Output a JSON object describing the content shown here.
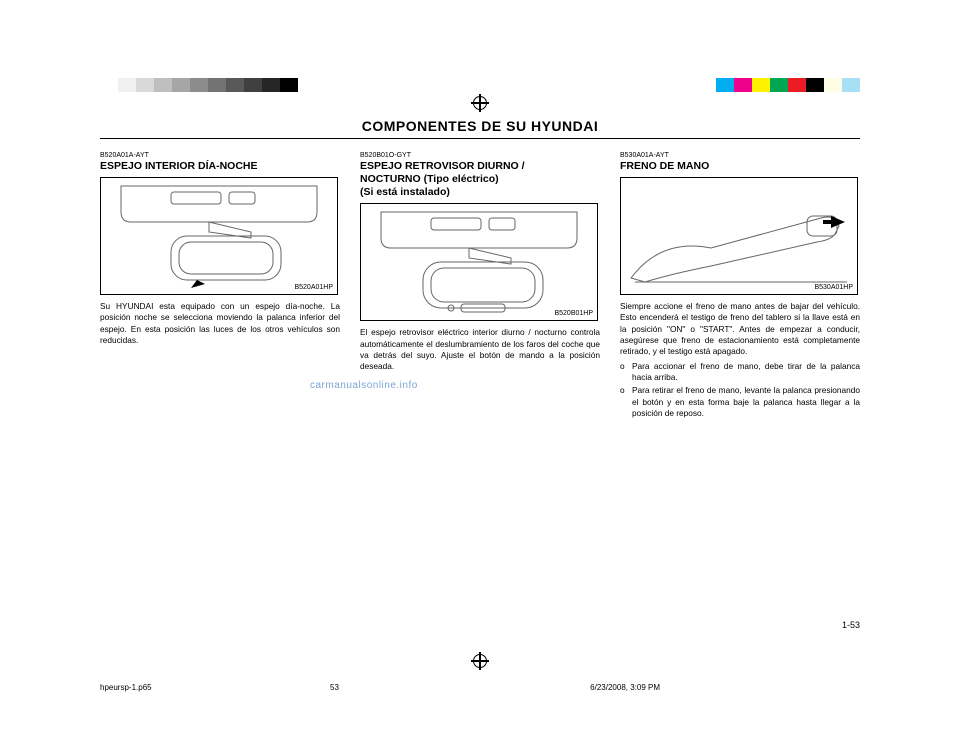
{
  "registration": {
    "gray_swatches": [
      "#ffffff",
      "#f0f0f0",
      "#d9d9d9",
      "#bfbfbf",
      "#a6a6a6",
      "#8c8c8c",
      "#737373",
      "#595959",
      "#404040",
      "#262626",
      "#000000"
    ],
    "color_swatches": [
      "#00aeef",
      "#ec008c",
      "#fff200",
      "#00a651",
      "#ed1c24",
      "#000000",
      "#fffde6",
      "#a7e0f5"
    ]
  },
  "header": {
    "title": "COMPONENTES DE SU HYUNDAI"
  },
  "col1": {
    "code": "B520A01A-AYT",
    "title": "ESPEJO INTERIOR DÍA-NOCHE",
    "fig_label": "B520A01HP",
    "text": "Su HYUNDAI esta equipado con un espejo día-noche. La posición noche se selecciona moviendo la palanca inferior del espejo. En esta posición las luces de los otros vehículos son reducidas."
  },
  "col2": {
    "code": "B520B01O-GYT",
    "title_l1": "ESPEJO RETROVISOR DIURNO /",
    "title_l2": "NOCTURNO (Tipo eléctrico)",
    "title_l3": "(Si está instalado)",
    "fig_label": "B520B01HP",
    "text": "El espejo retrovisor eléctrico interior diurno / nocturno controla automáticamente el deslumbramiento de los faros del coche que va detrás del suyo. Ajuste el botón de mando a la posición deseada."
  },
  "col3": {
    "code": "B530A01A-AYT",
    "title": "FRENO DE MANO",
    "fig_label": "B530A01HP",
    "text": "Siempre accione el freno de mano antes de bajar del vehículo. Esto encenderá el testigo de freno del tablero si la llave está en la posición \"ON\" o \"START\". Antes de empezar a conducir, asegúrese que freno de estacionamiento está completamente retirado, y el testigo está apagado.",
    "bullets": [
      "Para accionar el freno de mano, debe tirar de la palanca hacia arriba.",
      "Para retirar el freno de mano, levante la palanca presionando el botón y en esta forma baje la palanca hasta llegar a la posición de reposo."
    ]
  },
  "page_number": "1-53",
  "watermark": "carmanualsonline.info",
  "footer": {
    "file": "hpeursp-1.p65",
    "page": "53",
    "timestamp": "6/23/2008, 3:09 PM"
  }
}
